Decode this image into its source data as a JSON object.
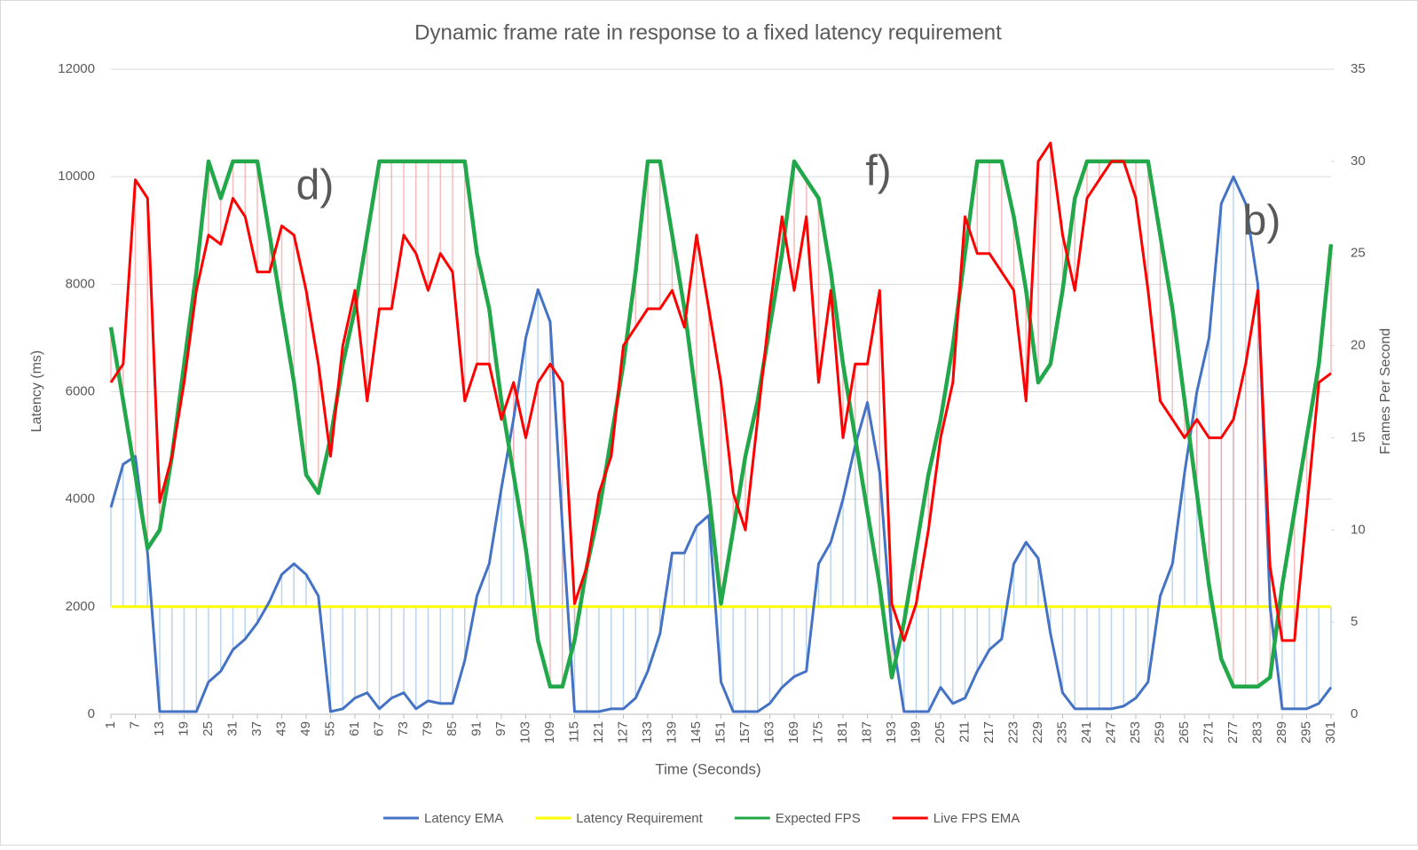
{
  "chart_data": {
    "type": "line",
    "title": "Dynamic frame rate in response to a fixed latency requirement",
    "x_label": "Time (Seconds)",
    "y_label": "Latency (ms)",
    "y2_label": "Frames Per Second",
    "annotations": [
      "d)",
      "f)",
      "b)"
    ],
    "x": [
      1,
      4,
      7,
      10,
      13,
      16,
      19,
      22,
      25,
      28,
      31,
      34,
      37,
      40,
      43,
      46,
      49,
      52,
      55,
      58,
      61,
      64,
      67,
      70,
      73,
      76,
      79,
      82,
      85,
      88,
      91,
      94,
      97,
      100,
      103,
      106,
      109,
      112,
      115,
      118,
      121,
      124,
      127,
      130,
      133,
      136,
      139,
      142,
      145,
      148,
      151,
      154,
      157,
      160,
      163,
      166,
      169,
      172,
      175,
      178,
      181,
      184,
      187,
      190,
      193,
      196,
      199,
      202,
      205,
      208,
      211,
      214,
      217,
      220,
      223,
      226,
      229,
      232,
      235,
      238,
      241,
      244,
      247,
      250,
      253,
      256,
      259,
      262,
      265,
      268,
      271,
      274,
      277,
      280,
      283,
      286,
      289,
      292,
      295,
      298,
      301
    ],
    "xlim": [
      1,
      301
    ],
    "xticks": [
      1,
      7,
      13,
      19,
      25,
      31,
      37,
      43,
      49,
      55,
      61,
      67,
      73,
      79,
      85,
      91,
      97,
      103,
      109,
      115,
      121,
      127,
      133,
      139,
      145,
      151,
      157,
      163,
      169,
      175,
      181,
      187,
      193,
      199,
      205,
      211,
      217,
      223,
      229,
      235,
      241,
      247,
      253,
      259,
      265,
      271,
      277,
      283,
      289,
      295,
      301
    ],
    "ylim": [
      0,
      12000
    ],
    "yticks": [
      0,
      2000,
      4000,
      6000,
      8000,
      10000,
      12000
    ],
    "y2lim": [
      0,
      35
    ],
    "y2ticks": [
      0,
      5,
      10,
      15,
      20,
      25,
      30,
      35
    ],
    "grid": true,
    "legend": "bottom",
    "series": [
      {
        "name": "Latency EMA",
        "color": "#4472c4",
        "values": [
          3850,
          4650,
          4800,
          3000,
          50,
          50,
          50,
          50,
          600,
          800,
          1200,
          1400,
          1700,
          2100,
          2600,
          2800,
          2600,
          2200,
          50,
          100,
          300,
          400,
          100,
          300,
          400,
          100,
          250,
          200,
          200,
          1000,
          2200,
          2800,
          4200,
          5500,
          7000,
          7900,
          7300,
          3500,
          50,
          50,
          50,
          100,
          100,
          300,
          800,
          1500,
          3000,
          3000,
          3500,
          3700,
          600,
          50,
          50,
          50,
          200,
          500,
          700,
          800,
          2800,
          3200,
          4000,
          5000,
          5800,
          4500,
          1500,
          50,
          50,
          50,
          500,
          200,
          300,
          800,
          1200,
          1400,
          2800,
          3200,
          2900,
          1500,
          400,
          100,
          100,
          100,
          100,
          150,
          300,
          600,
          2200,
          2800,
          4500,
          6000,
          7000,
          9500,
          10000,
          9500,
          8000,
          2000,
          100,
          100,
          100,
          200,
          500
        ]
      },
      {
        "name": "Latency Requirement",
        "color": "#ffff00",
        "values": [
          2000,
          2000,
          2000,
          2000,
          2000,
          2000,
          2000,
          2000,
          2000,
          2000,
          2000,
          2000,
          2000,
          2000,
          2000,
          2000,
          2000,
          2000,
          2000,
          2000,
          2000,
          2000,
          2000,
          2000,
          2000,
          2000,
          2000,
          2000,
          2000,
          2000,
          2000,
          2000,
          2000,
          2000,
          2000,
          2000,
          2000,
          2000,
          2000,
          2000,
          2000,
          2000,
          2000,
          2000,
          2000,
          2000,
          2000,
          2000,
          2000,
          2000,
          2000,
          2000,
          2000,
          2000,
          2000,
          2000,
          2000,
          2000,
          2000,
          2000,
          2000,
          2000,
          2000,
          2000,
          2000,
          2000,
          2000,
          2000,
          2000,
          2000,
          2000,
          2000,
          2000,
          2000,
          2000,
          2000,
          2000,
          2000,
          2000,
          2000,
          2000,
          2000,
          2000,
          2000,
          2000,
          2000,
          2000,
          2000,
          2000,
          2000,
          2000,
          2000,
          2000,
          2000,
          2000,
          2000,
          2000,
          2000,
          2000,
          2000,
          2000
        ]
      },
      {
        "name": "Expected FPS",
        "color": "#22a84a",
        "axis": "y2",
        "values": [
          21,
          17,
          13,
          9,
          10,
          14,
          19,
          24,
          30,
          28,
          30,
          30,
          30,
          26,
          22,
          18,
          13,
          12,
          15,
          19,
          22,
          26,
          30,
          30,
          30,
          30,
          30,
          30,
          30,
          30,
          25,
          22,
          17,
          13,
          9,
          4,
          1.5,
          1.5,
          4,
          8,
          11,
          15,
          19,
          24,
          30,
          30,
          26,
          22,
          17,
          12,
          6,
          10,
          14,
          17,
          21,
          25,
          30,
          29,
          28,
          24,
          19,
          15,
          11,
          7,
          2,
          5,
          9,
          13,
          16,
          20,
          25,
          30,
          30,
          30,
          27,
          23,
          18,
          19,
          23,
          28,
          30,
          30,
          30,
          30,
          30,
          30,
          26,
          22,
          17,
          12,
          7,
          3,
          1.5,
          1.5,
          1.5,
          2,
          7,
          11,
          15,
          19,
          25.5
        ]
      },
      {
        "name": "Live FPS EMA",
        "color": "#ff0000",
        "axis": "y2",
        "values": [
          18,
          19,
          29,
          28,
          11.5,
          14,
          18,
          23,
          26,
          25.5,
          28,
          27,
          24,
          24,
          26.5,
          26,
          23,
          19,
          14,
          20,
          23,
          17,
          22,
          22,
          26,
          25,
          23,
          25,
          24,
          17,
          19,
          19,
          16,
          18,
          15,
          18,
          19,
          18,
          6,
          8,
          12,
          14,
          20,
          21,
          22,
          22,
          23,
          21,
          26,
          22,
          18,
          12,
          10,
          16,
          22,
          27,
          23,
          27,
          18,
          23,
          15,
          19,
          19,
          23,
          6,
          4,
          6,
          10,
          15,
          18,
          27,
          25,
          25,
          24,
          23,
          17,
          30,
          31,
          26,
          23,
          28,
          29,
          30,
          30,
          28,
          23,
          17,
          16,
          15,
          16,
          15,
          15,
          16,
          19,
          23,
          8,
          4,
          4,
          11,
          18,
          18.5
        ]
      }
    ]
  }
}
